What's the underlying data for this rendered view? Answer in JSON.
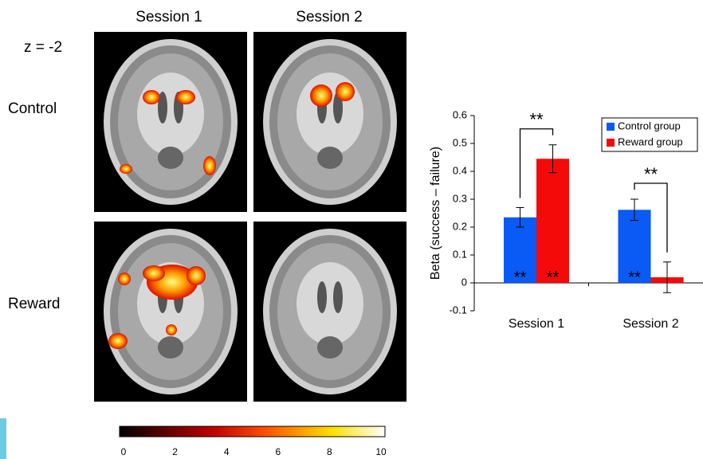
{
  "brain_panel": {
    "columns": [
      "Session 1",
      "Session 2"
    ],
    "rows": [
      "Control",
      "Reward"
    ],
    "slice_label": "z = -2"
  },
  "colorbar": {
    "type": "colorbar",
    "xlim": [
      0,
      10
    ],
    "xticks": [
      0,
      2,
      4,
      6,
      8,
      10
    ]
  },
  "chart_data": {
    "type": "bar",
    "ylabel": "Beta (success – failure)",
    "categories": [
      "Session 1",
      "Session 2"
    ],
    "series": [
      {
        "name": "Control group",
        "color": "#0a5af5",
        "values": [
          0.235,
          0.262
        ],
        "errors": [
          0.035,
          0.038
        ],
        "bar_labels": [
          "**",
          "**"
        ]
      },
      {
        "name": "Reward group",
        "color": "#f50a0a",
        "values": [
          0.445,
          0.02
        ],
        "errors": [
          0.05,
          0.055
        ],
        "bar_labels": [
          "**",
          null
        ]
      }
    ],
    "bracket_labels": [
      "**",
      "**"
    ],
    "ylim": [
      -0.1,
      0.6
    ],
    "yticks": [
      -0.1,
      0,
      0.1,
      0.2,
      0.3,
      0.4,
      0.5,
      0.6
    ],
    "legend": "upper right"
  }
}
